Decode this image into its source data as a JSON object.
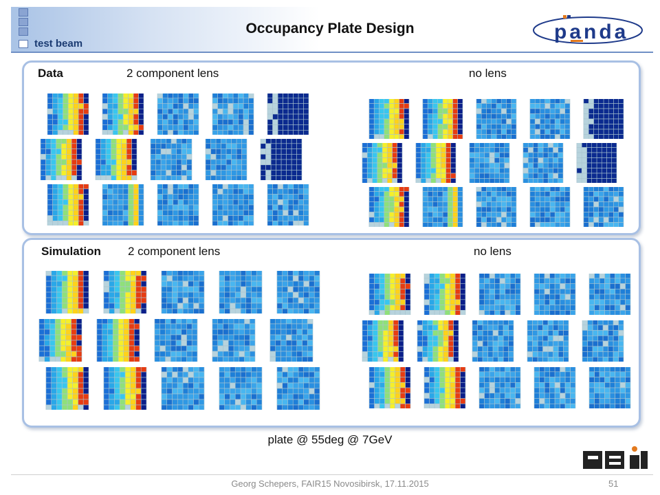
{
  "header": {
    "title": "Occupancy Plate Design",
    "kicker": "test beam",
    "logo_text": "panda"
  },
  "data_panel": {
    "label": "Data",
    "left_label": "2 component lens",
    "right_label": "no lens"
  },
  "sim_panel": {
    "label": "Simulation",
    "left_label": "2 component lens",
    "right_label": "no lens"
  },
  "caption": "plate @ 55deg  @ 7GeV",
  "footer": {
    "text": "Georg Schepers, FAIR15 Novosibirsk, 17.11.2015",
    "page": "51"
  },
  "colors": {
    "accent": "#6f8fc5",
    "panel_border": "#a8c0e4",
    "logo_blue": "#1e3a8a",
    "logo_orange": "#e37a1e"
  },
  "icons": [
    "header-square-icon",
    "panda-logo-icon",
    "gsi-logo-icon"
  ]
}
